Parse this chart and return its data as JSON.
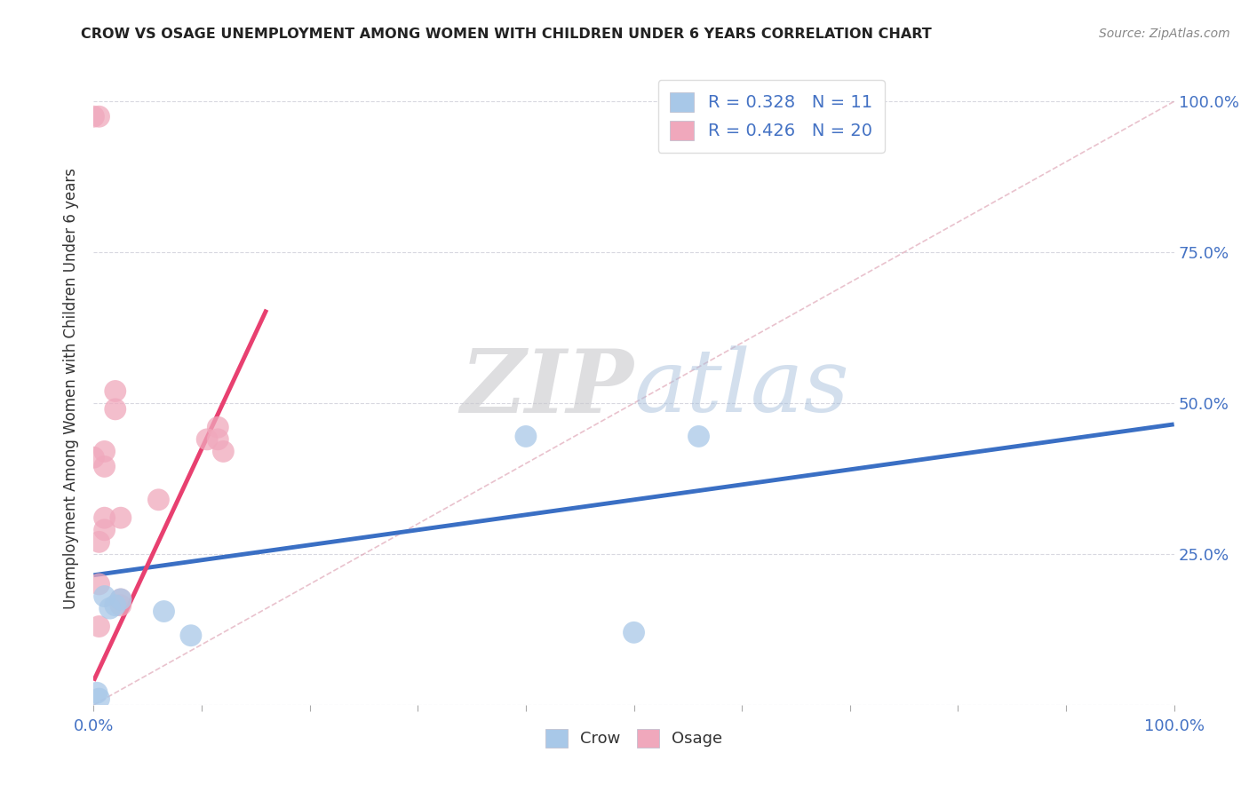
{
  "title": "CROW VS OSAGE UNEMPLOYMENT AMONG WOMEN WITH CHILDREN UNDER 6 YEARS CORRELATION CHART",
  "source": "Source: ZipAtlas.com",
  "ylabel": "Unemployment Among Women with Children Under 6 years",
  "crow_label": "Crow",
  "osage_label": "Osage",
  "crow_R": 0.328,
  "crow_N": 11,
  "osage_R": 0.426,
  "osage_N": 20,
  "crow_color": "#a8c8e8",
  "crow_line_color": "#3a6fc4",
  "osage_color": "#f0a8bc",
  "osage_line_color": "#e84070",
  "diagonal_color": "#e0a8b8",
  "crow_scatter_x": [
    0.003,
    0.005,
    0.01,
    0.015,
    0.02,
    0.025,
    0.065,
    0.09,
    0.5,
    0.56,
    0.4
  ],
  "crow_scatter_y": [
    0.02,
    0.01,
    0.18,
    0.16,
    0.165,
    0.175,
    0.155,
    0.115,
    0.12,
    0.445,
    0.445
  ],
  "osage_scatter_x": [
    0.0,
    0.005,
    0.0,
    0.01,
    0.01,
    0.01,
    0.01,
    0.005,
    0.005,
    0.005,
    0.02,
    0.02,
    0.025,
    0.025,
    0.025,
    0.06,
    0.105,
    0.115,
    0.115,
    0.12
  ],
  "osage_scatter_y": [
    0.975,
    0.975,
    0.41,
    0.42,
    0.395,
    0.31,
    0.29,
    0.27,
    0.2,
    0.13,
    0.52,
    0.49,
    0.31,
    0.175,
    0.165,
    0.34,
    0.44,
    0.46,
    0.44,
    0.42
  ],
  "xlim": [
    0.0,
    1.0
  ],
  "ylim": [
    0.0,
    1.05
  ],
  "xticks": [
    0.0,
    0.1,
    0.2,
    0.3,
    0.4,
    0.5,
    0.6,
    0.7,
    0.8,
    0.9,
    1.0
  ],
  "yticks": [
    0.0,
    0.25,
    0.5,
    0.75,
    1.0
  ],
  "ytick_right_labels": [
    "",
    "25.0%",
    "50.0%",
    "75.0%",
    "100.0%"
  ],
  "xtick_labels": [
    "0.0%",
    "",
    "",
    "",
    "",
    "",
    "",
    "",
    "",
    "",
    "100.0%"
  ],
  "crow_trendline_x": [
    0.0,
    1.0
  ],
  "crow_trendline_y": [
    0.215,
    0.465
  ],
  "osage_trendline_x": [
    0.0,
    0.16
  ],
  "osage_trendline_y": [
    0.04,
    0.655
  ],
  "watermark_zip": "ZIP",
  "watermark_atlas": "atlas",
  "background_color": "#ffffff",
  "grid_color": "#d8d8e0",
  "tick_color": "#4472c4",
  "label_color": "#333333"
}
